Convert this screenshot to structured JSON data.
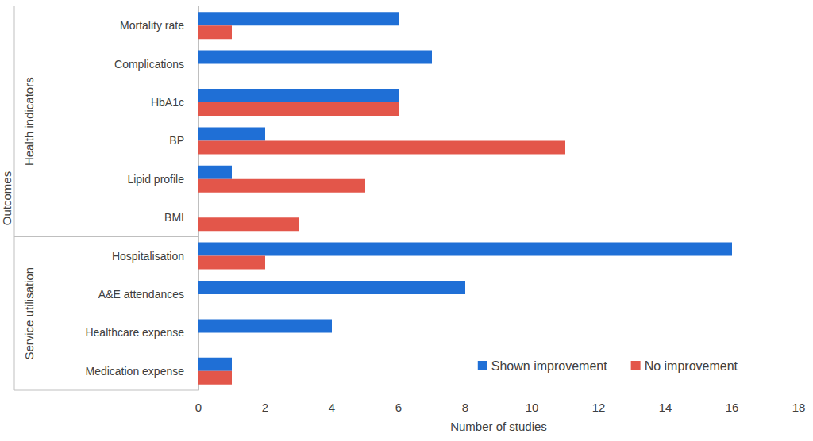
{
  "chart_data": {
    "type": "bar",
    "orientation": "horizontal",
    "categories": [
      "Mortality rate",
      "Complications",
      "HbA1c",
      "BP",
      "Lipid profile",
      "BMI",
      "Hospitalisation",
      "A&E attendances",
      "Healthcare expense",
      "Medication expense"
    ],
    "series": [
      {
        "name": "Shown improvement",
        "color": "#1f6fd6",
        "values": [
          6,
          7,
          6,
          2,
          1,
          0,
          16,
          8,
          4,
          1
        ]
      },
      {
        "name": "No improvement",
        "color": "#e3564a",
        "values": [
          1,
          0,
          6,
          11,
          5,
          3,
          2,
          0,
          0,
          1
        ]
      }
    ],
    "xlim": [
      0,
      18
    ],
    "xticks": [
      0,
      2,
      4,
      6,
      8,
      10,
      12,
      14,
      16,
      18
    ],
    "x_label": "Number of studies",
    "y_label": "Outcomes",
    "groups": [
      {
        "label": "Health indicators",
        "categories": [
          "Mortality rate",
          "Complications",
          "HbA1c",
          "BP",
          "Lipid profile",
          "BMI"
        ]
      },
      {
        "label": "Service utilisation",
        "categories": [
          "Hospitalisation",
          "A&E attendances",
          "Healthcare expense",
          "Medication expense"
        ]
      }
    ],
    "legend": "lower right",
    "grid": false
  }
}
